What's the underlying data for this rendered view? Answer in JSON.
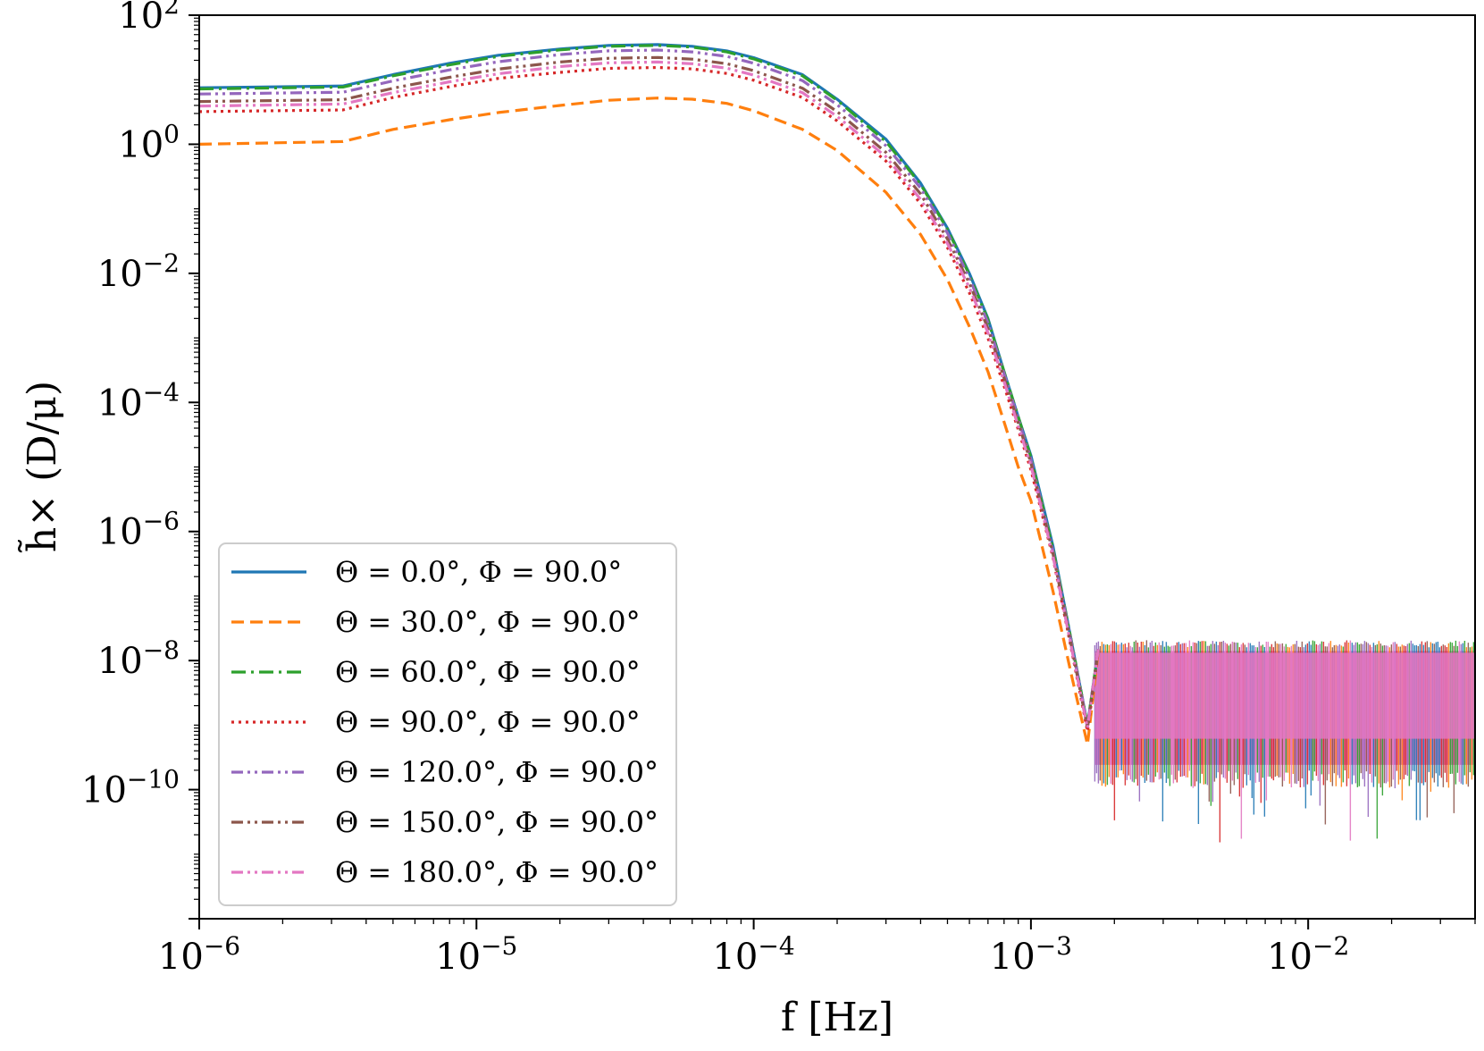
{
  "chart_data": {
    "type": "line",
    "title": "",
    "xlabel": "f [Hz]",
    "ylabel": "h̃× (D/μ)",
    "xscale": "log",
    "yscale": "log",
    "xlim": [
      1e-06,
      0.04
    ],
    "ylim": [
      1e-12,
      100
    ],
    "x_ticks": [
      {
        "value": 1e-06,
        "base": "10",
        "exp": "−6"
      },
      {
        "value": 1e-05,
        "base": "10",
        "exp": "−5"
      },
      {
        "value": 0.0001,
        "base": "10",
        "exp": "−4"
      },
      {
        "value": 0.001,
        "base": "10",
        "exp": "−3"
      },
      {
        "value": 0.01,
        "base": "10",
        "exp": "−2"
      }
    ],
    "y_ticks": [
      {
        "value": 100,
        "base": "10",
        "exp": "2"
      },
      {
        "value": 1,
        "base": "10",
        "exp": "0"
      },
      {
        "value": 0.01,
        "base": "10",
        "exp": "−2"
      },
      {
        "value": 0.0001,
        "base": "10",
        "exp": "−4"
      },
      {
        "value": 1e-06,
        "base": "10",
        "exp": "−6"
      },
      {
        "value": 1e-08,
        "base": "10",
        "exp": "−8"
      },
      {
        "value": 1e-10,
        "base": "10",
        "exp": "−10"
      }
    ],
    "legend_position": "lower-left",
    "noise_floor": {
      "f_start": 0.0017,
      "upper": 1.6e-08,
      "lower": 2e-10,
      "min_spikes": 1.5e-11
    },
    "shared_x": [
      1e-06,
      3.3e-06,
      5e-06,
      8e-06,
      1.2e-05,
      2e-05,
      3e-05,
      4.5e-05,
      6e-05,
      8e-05,
      0.0001,
      0.00015,
      0.0002,
      0.0003,
      0.0004,
      0.0005,
      0.0006,
      0.0007,
      0.0008,
      0.0009,
      0.001,
      0.0012,
      0.0014,
      0.0016,
      0.00175
    ],
    "series": [
      {
        "name": "Θ = 0.0°, Φ = 90.0°",
        "color": "#1f77b4",
        "dash": "solid",
        "values": [
          7.5,
          8,
          12,
          18,
          24,
          30,
          34,
          35,
          33,
          28,
          22,
          12,
          5,
          1.2,
          0.25,
          0.05,
          0.01,
          0.002,
          0.0003,
          6e-05,
          1.5e-05,
          6e-07,
          2e-08,
          1e-09,
          1.5e-08
        ]
      },
      {
        "name": "Θ = 30.0°, Φ = 90.0°",
        "color": "#ff7f0e",
        "dash": "dashed",
        "values": [
          1.0,
          1.1,
          1.7,
          2.4,
          3.1,
          4.0,
          4.8,
          5.2,
          5.0,
          4.3,
          3.3,
          1.7,
          0.8,
          0.18,
          0.04,
          0.008,
          0.0015,
          0.0003,
          5e-05,
          1e-05,
          3e-06,
          1.2e-07,
          6e-09,
          5e-10,
          1.4e-08
        ]
      },
      {
        "name": "Θ = 60.0°, Φ = 90.0°",
        "color": "#2ca02c",
        "dash": "dashdot",
        "values": [
          7.2,
          7.7,
          11.5,
          17,
          23,
          29,
          33,
          34,
          32,
          27,
          21,
          11.5,
          4.8,
          1.1,
          0.24,
          0.048,
          0.0095,
          0.0019,
          0.0003,
          6e-05,
          1.4e-05,
          5.5e-07,
          2e-08,
          1e-09,
          1.5e-08
        ]
      },
      {
        "name": "Θ = 90.0°, Φ = 90.0°",
        "color": "#d62728",
        "dash": "dotted",
        "values": [
          3.2,
          3.4,
          5.3,
          7.8,
          10.5,
          13,
          15,
          15.5,
          14.7,
          12.5,
          9.8,
          5.3,
          2.3,
          0.55,
          0.12,
          0.025,
          0.005,
          0.001,
          0.00018,
          3.8e-05,
          9e-06,
          4e-07,
          1.5e-08,
          8e-10,
          1.4e-08
        ]
      },
      {
        "name": "Θ = 120.0°, Φ = 90.0°",
        "color": "#9467bd",
        "dash": "dashdotdot",
        "values": [
          6.0,
          6.4,
          9.6,
          14.2,
          19,
          24.5,
          28,
          28.8,
          27,
          23,
          18,
          9.7,
          4.1,
          0.95,
          0.21,
          0.042,
          0.0085,
          0.0017,
          0.00028,
          5.5e-05,
          1.3e-05,
          5e-07,
          1.9e-08,
          1e-09,
          1.5e-08
        ]
      },
      {
        "name": "Θ = 150.0°, Φ = 90.0°",
        "color": "#8c564b",
        "dash": "dashdotdot",
        "values": [
          4.6,
          4.9,
          7.4,
          10.9,
          14.6,
          18.8,
          21.5,
          22.1,
          20.8,
          17.7,
          13.8,
          7.4,
          3.2,
          0.75,
          0.17,
          0.034,
          0.007,
          0.0014,
          0.00024,
          4.8e-05,
          1.15e-05,
          4.6e-07,
          1.7e-08,
          9e-10,
          1.5e-08
        ]
      },
      {
        "name": "Θ = 180.0°, Φ = 90.0°",
        "color": "#e377c2",
        "dash": "dashdotdot",
        "values": [
          3.9,
          4.2,
          6.3,
          9.3,
          12.4,
          16,
          18.3,
          18.8,
          17.7,
          15.1,
          11.8,
          6.3,
          2.7,
          0.64,
          0.14,
          0.029,
          0.006,
          0.0012,
          0.00021,
          4.3e-05,
          1.05e-05,
          4.2e-07,
          1.6e-08,
          9e-10,
          1.5e-08
        ]
      }
    ]
  }
}
